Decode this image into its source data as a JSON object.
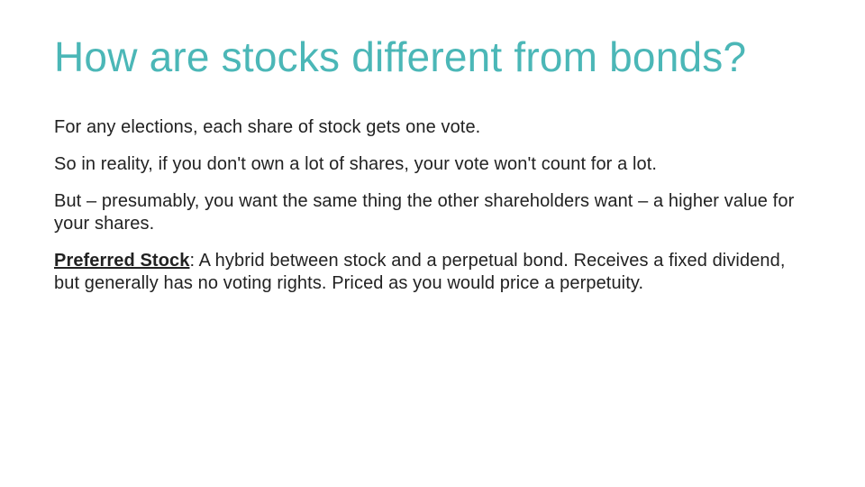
{
  "title": {
    "text": "How are stocks different from bonds?",
    "color": "#4bb7b7",
    "fontsize": 46,
    "fontweight": 300
  },
  "body": {
    "color": "#222222",
    "fontsize": 20,
    "paragraphs": [
      {
        "plain": "For any elections, each share of stock gets one vote."
      },
      {
        "plain": "So in reality, if you don't own a lot of shares, your vote won't count for a lot."
      },
      {
        "plain": "But – presumably, you want the same thing the other shareholders want – a higher value for your shares."
      },
      {
        "lead_label": "Preferred Stock",
        "lead_style": "bold underline",
        "rest": ": A hybrid between stock and a perpetual bond. Receives a fixed dividend, but generally has no voting rights. Priced as you would price a perpetuity."
      }
    ]
  },
  "background_color": "#ffffff"
}
